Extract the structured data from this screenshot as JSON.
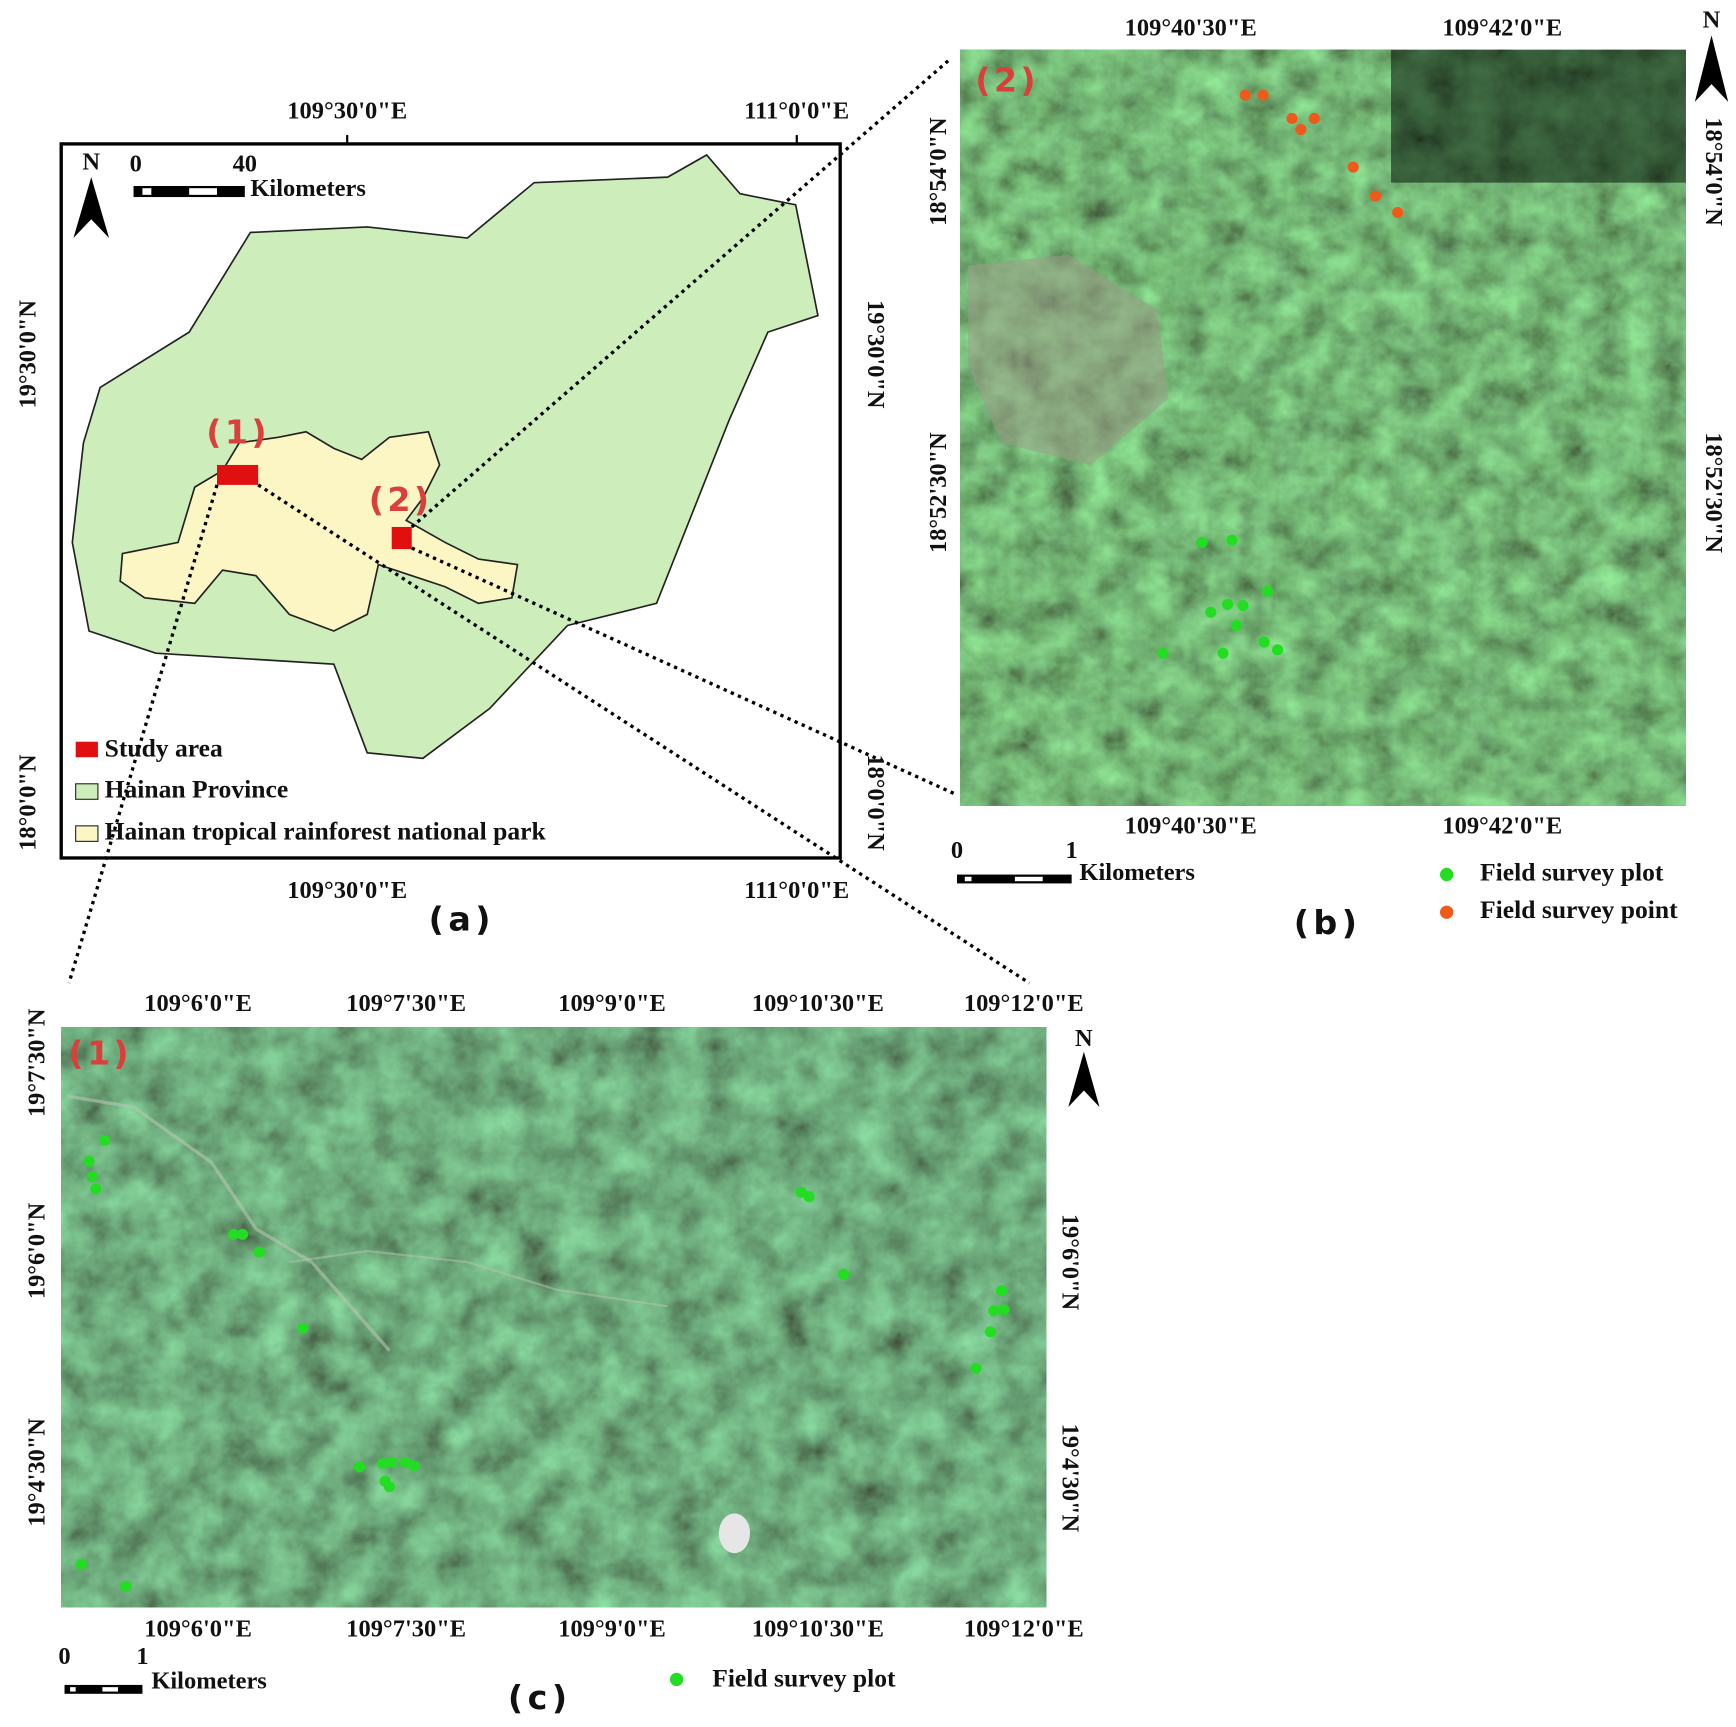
{
  "panels": {
    "a": {
      "caption": "(a)",
      "lon_labels": [
        "109°30'0\"E",
        "111°0'0\"E"
      ],
      "lat_labels": [
        "19°30'0\"N",
        "18°0'0\"N"
      ],
      "north": "N",
      "scale_bar": {
        "ticks": [
          "0",
          "40"
        ],
        "unit": "Kilometers"
      },
      "inset_labels": [
        "(1)",
        "(2)"
      ],
      "legend": [
        "Study area",
        "Hainan Province",
        "Hainan tropical rainforest national park"
      ]
    },
    "b": {
      "caption": "(b)",
      "inset_label": "(2)",
      "lon_labels": [
        "109°40'30\"E",
        "109°42'0\"E"
      ],
      "lat_labels": [
        "18°54'0\"N",
        "18°52'30\"N"
      ],
      "north": "N",
      "scale_bar": {
        "ticks": [
          "0",
          "1"
        ],
        "unit": "Kilometers"
      },
      "legend": [
        "Field survey plot",
        "Field survey point"
      ]
    },
    "c": {
      "caption": "(c)",
      "inset_label": "(1)",
      "lon_labels": [
        "109°6'0\"E",
        "109°7'30\"E",
        "109°9'0\"E",
        "109°10'30\"E",
        "109°12'0\"E"
      ],
      "lat_labels_left": [
        "19°7'30\"N",
        "19°6'0\"N",
        "19°4'30\"N"
      ],
      "lat_labels_right": [
        "19°6'0\"N",
        "19°4'30\"N"
      ],
      "north": "N",
      "scale_bar": {
        "ticks": [
          "0",
          "1"
        ],
        "unit": "Kilometers"
      },
      "legend": [
        "Field survey plot"
      ]
    }
  }
}
